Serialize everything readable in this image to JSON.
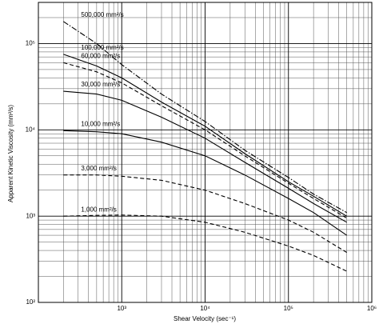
{
  "chart_data": {
    "type": "line",
    "xlabel": "Shear Velocity (sec⁻¹)",
    "ylabel": "Apparent Kinetic Viscosity (mm²/s)",
    "log_x": true,
    "log_y": true,
    "grid": true,
    "minor_grid": true,
    "xlim": [
      100,
      1000000
    ],
    "ylim": [
      100,
      300000
    ],
    "xticks": [
      {
        "value": 1000,
        "label": "10³"
      },
      {
        "value": 10000,
        "label": "10⁴"
      },
      {
        "value": 100000,
        "label": "10⁵"
      },
      {
        "value": 1000000,
        "label": "10⁶"
      }
    ],
    "yticks": [
      {
        "value": 100,
        "label": "10²"
      },
      {
        "value": 1000,
        "label": "10³"
      },
      {
        "value": 10000,
        "label": "10⁴"
      },
      {
        "value": 100000,
        "label": "10⁵"
      }
    ],
    "x": [
      200,
      500,
      1000,
      3000,
      10000,
      30000,
      100000,
      200000,
      500000
    ],
    "series": [
      {
        "name": "500,000 mm²/s",
        "color": "#000000",
        "dash": "dash-dot",
        "values": [
          180000,
          100000,
          57000,
          26000,
          12500,
          5800,
          2800,
          1800,
          1100
        ]
      },
      {
        "name": "100,000 mm²/s",
        "color": "#000000",
        "dash": "solid",
        "values": [
          75000,
          55000,
          40000,
          21000,
          11000,
          5300,
          2500,
          1700,
          1000
        ]
      },
      {
        "name": "60,000 mm²/s",
        "color": "#000000",
        "dash": "dashed",
        "values": [
          60000,
          47000,
          35000,
          19000,
          10000,
          5000,
          2400,
          1600,
          950
        ]
      },
      {
        "name": "30,000 mm²/s",
        "color": "#000000",
        "dash": "solid",
        "values": [
          28000,
          26000,
          22000,
          14000,
          8000,
          4200,
          2100,
          1400,
          850
        ]
      },
      {
        "name": "10,000 mm²/s",
        "color": "#000000",
        "dash": "solid",
        "values": [
          9800,
          9500,
          9000,
          7200,
          5000,
          3000,
          1600,
          1100,
          600
        ]
      },
      {
        "name": "3,000 mm²/s",
        "color": "#000000",
        "dash": "dashed",
        "values": [
          3000,
          3000,
          2900,
          2600,
          2000,
          1400,
          900,
          650,
          380
        ]
      },
      {
        "name": "1,000 mm²/s",
        "color": "#000000",
        "dash": "dashed",
        "values": [
          1000,
          1020,
          1030,
          1000,
          850,
          650,
          450,
          350,
          230
        ]
      }
    ]
  }
}
